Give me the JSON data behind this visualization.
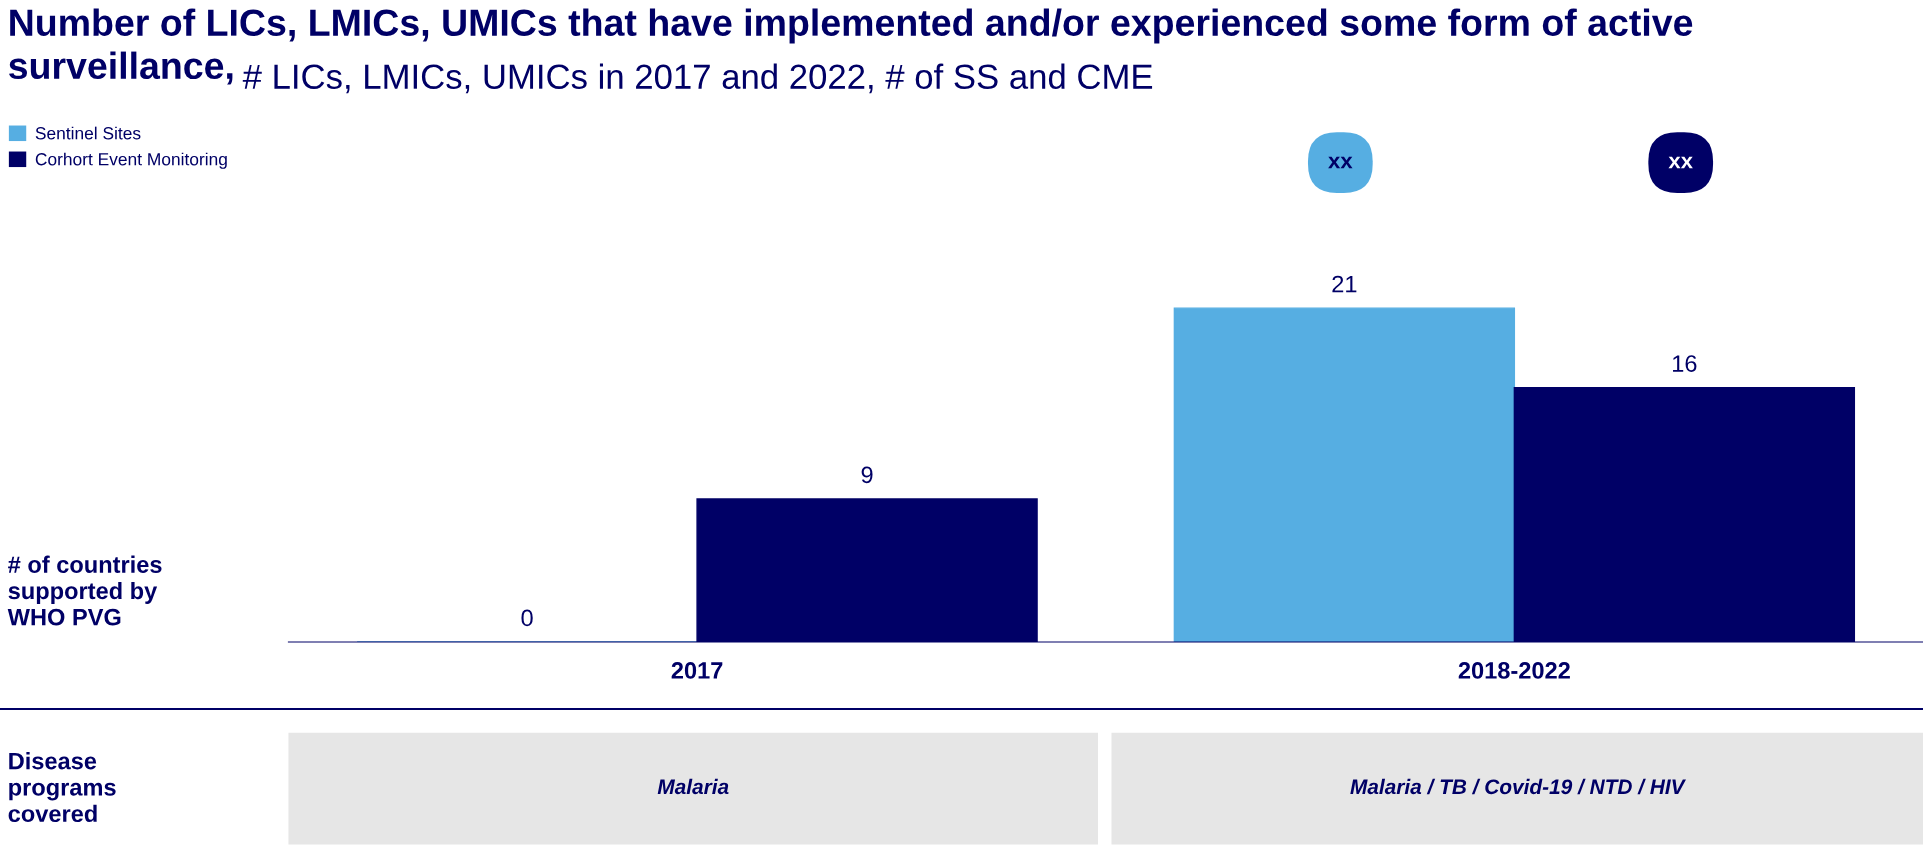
{
  "chart_data": {
    "type": "bar",
    "title": "Number of LICs, LMICs, UMICs that have implemented and/or experienced some form of active surveillance,",
    "subtitle": "# LICs, LMICs, UMICs in 2017 and 2022, # of SS and CME",
    "categories": [
      "2017",
      "2018-2022"
    ],
    "series": [
      {
        "name": "Sentinel Sites",
        "color": "#56aee2",
        "values": [
          0,
          21
        ]
      },
      {
        "name": "Corhort Event Monitoring",
        "color": "#000066",
        "values": [
          9,
          16
        ]
      }
    ],
    "data_labels": true,
    "legend": "top left",
    "annotations": [
      "xx",
      "xx",
      "# of countries\nsupported by\nWHO PVG",
      "Disease\nprograms\ncovered",
      "Malaria",
      "Malaria / TB / Covid-19 / NTD / HIV"
    ]
  }
}
